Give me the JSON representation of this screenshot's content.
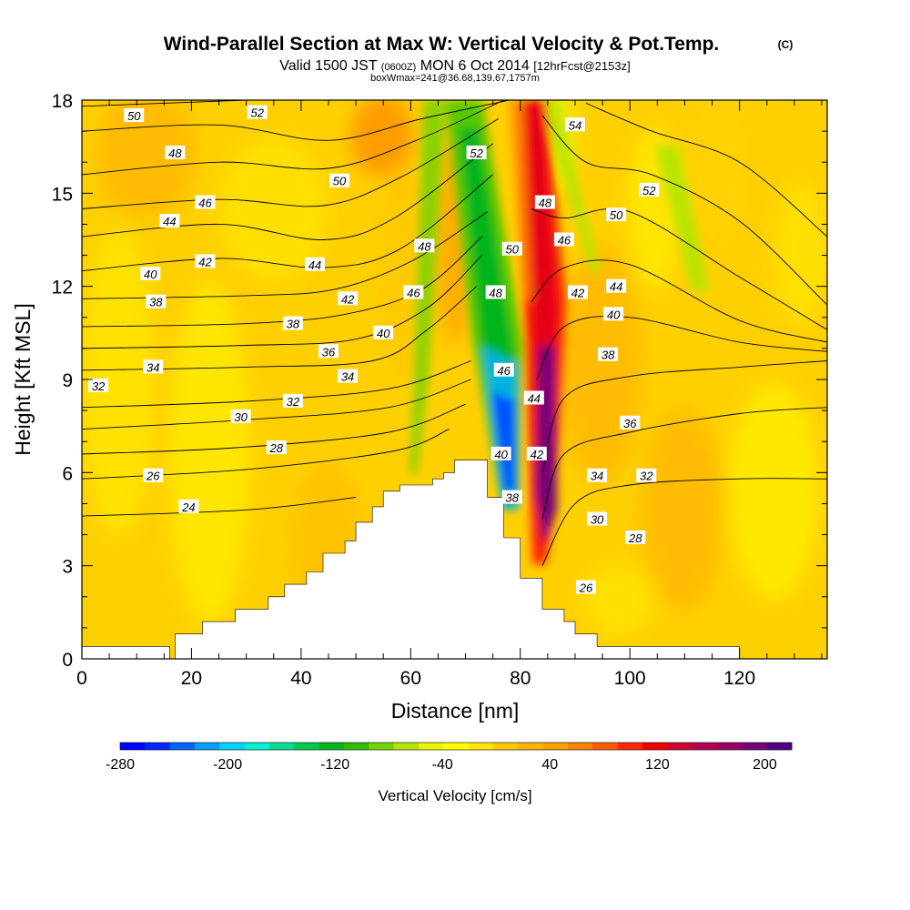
{
  "title": {
    "main": "Wind-Parallel Section at Max W: Vertical Velocity & Pot.Temp.",
    "copyright": "(C)",
    "valid_prefix": "Valid 1500 JST",
    "valid_utc": "(0600Z)",
    "valid_date": "MON 6 Oct 2014",
    "forecast": "[12hrFcst@2153z]",
    "box_info": "boxWmax=241@36.68,139.67,1757m"
  },
  "chart_data": {
    "type": "heatmap",
    "xlabel": "Distance [nm]",
    "ylabel": "Height [Kft MSL]",
    "xlim": [
      0,
      136
    ],
    "ylim": [
      0,
      18
    ],
    "x_ticks": [
      0,
      20,
      40,
      60,
      80,
      100,
      120
    ],
    "y_ticks": [
      0,
      3,
      6,
      9,
      12,
      15,
      18
    ],
    "colorbar": {
      "title": "Vertical Velocity [cm/s]",
      "range": [
        -280,
        220
      ],
      "tick_labels": [
        "-280",
        "-200",
        "-120",
        "-40",
        "40",
        "120",
        "200"
      ],
      "tick_values": [
        -280,
        -200,
        -120,
        -40,
        40,
        120,
        200
      ],
      "colors": [
        "#0000ff",
        "#0028ff",
        "#0064ff",
        "#00a0ff",
        "#00d2ff",
        "#00f0d2",
        "#00dc96",
        "#00c850",
        "#00b41e",
        "#32be00",
        "#78d200",
        "#b4e600",
        "#e6f500",
        "#ffff00",
        "#ffe600",
        "#ffc800",
        "#ffb400",
        "#ffa000",
        "#ff8200",
        "#ff5a00",
        "#ff2800",
        "#f00000",
        "#d20032",
        "#b40050",
        "#960064",
        "#780078",
        "#500082"
      ]
    },
    "terrain_kft": [
      [
        0,
        0.4
      ],
      [
        16,
        0.4
      ],
      [
        16,
        0
      ],
      [
        17,
        0
      ],
      [
        17,
        0.8
      ],
      [
        22,
        0.8
      ],
      [
        22,
        1.2
      ],
      [
        28,
        1.2
      ],
      [
        28,
        1.6
      ],
      [
        34,
        1.6
      ],
      [
        34,
        2.0
      ],
      [
        37,
        2.0
      ],
      [
        37,
        2.4
      ],
      [
        41,
        2.4
      ],
      [
        41,
        2.8
      ],
      [
        44,
        2.8
      ],
      [
        44,
        3.4
      ],
      [
        48,
        3.4
      ],
      [
        48,
        3.8
      ],
      [
        50,
        3.8
      ],
      [
        50,
        4.4
      ],
      [
        53,
        4.4
      ],
      [
        53,
        4.9
      ],
      [
        55,
        4.9
      ],
      [
        55,
        5.4
      ],
      [
        58,
        5.4
      ],
      [
        58,
        5.6
      ],
      [
        64,
        5.6
      ],
      [
        64,
        5.8
      ],
      [
        66,
        5.8
      ],
      [
        66,
        6.0
      ],
      [
        68,
        6.0
      ],
      [
        68,
        6.4
      ],
      [
        74,
        6.4
      ],
      [
        74,
        5.2
      ],
      [
        77,
        5.2
      ],
      [
        77,
        3.9
      ],
      [
        80,
        3.9
      ],
      [
        80,
        2.6
      ],
      [
        84,
        2.6
      ],
      [
        84,
        1.6
      ],
      [
        88,
        1.6
      ],
      [
        88,
        1.2
      ],
      [
        90,
        1.2
      ],
      [
        90,
        0.8
      ],
      [
        94,
        0.8
      ],
      [
        94,
        0.4
      ],
      [
        120,
        0.4
      ],
      [
        120,
        0
      ],
      [
        136,
        0
      ]
    ],
    "velocity_features_cm_s": [
      {
        "x": 67,
        "y": 10.5,
        "w": -160
      },
      {
        "x": 76,
        "y": 6.5,
        "w": -280
      },
      {
        "x": 82,
        "y": 7.5,
        "w": 210
      },
      {
        "x": 81,
        "y": 14,
        "w": 140
      },
      {
        "x": 58,
        "y": 9,
        "w": -60
      },
      {
        "x": 108,
        "y": 14,
        "w": -40
      },
      {
        "x": 52,
        "y": 16.5,
        "w": 80
      },
      {
        "x": 58,
        "y": 12.5,
        "w": 60
      }
    ],
    "theta_contours": [
      {
        "label": "24",
        "points": [
          [
            0,
            4.6
          ],
          [
            30,
            4.8
          ],
          [
            50,
            5.2
          ]
        ]
      },
      {
        "label": "26",
        "points": [
          [
            0,
            5.8
          ],
          [
            30,
            6.1
          ],
          [
            57,
            6.7
          ],
          [
            67,
            7.4
          ]
        ]
      },
      {
        "label": "28",
        "points": [
          [
            0,
            6.6
          ],
          [
            28,
            6.8
          ],
          [
            56,
            7.3
          ],
          [
            70,
            8.2
          ]
        ]
      },
      {
        "label": "30",
        "points": [
          [
            0,
            7.4
          ],
          [
            30,
            7.7
          ],
          [
            56,
            8.1
          ],
          [
            71,
            9.0
          ]
        ]
      },
      {
        "label": "32",
        "points": [
          [
            0,
            8.1
          ],
          [
            30,
            8.3
          ],
          [
            56,
            8.7
          ],
          [
            71,
            9.6
          ]
        ]
      },
      {
        "label": "34",
        "points": [
          [
            0,
            9.3
          ],
          [
            30,
            9.4
          ],
          [
            53,
            9.6
          ],
          [
            63,
            10.6
          ],
          [
            72,
            12.0
          ]
        ]
      },
      {
        "label": "36",
        "points": [
          [
            0,
            10.0
          ],
          [
            30,
            10.1
          ],
          [
            50,
            10.3
          ],
          [
            63,
            11.3
          ],
          [
            73,
            13.0
          ]
        ]
      },
      {
        "label": "38",
        "points": [
          [
            0,
            10.7
          ],
          [
            30,
            10.8
          ],
          [
            48,
            11.1
          ],
          [
            62,
            11.9
          ],
          [
            73,
            13.6
          ]
        ]
      },
      {
        "label": "40",
        "points": [
          [
            0,
            11.6
          ],
          [
            30,
            11.7
          ],
          [
            46,
            11.9
          ],
          [
            60,
            12.8
          ],
          [
            74,
            14.4
          ]
        ]
      },
      {
        "label": "42",
        "points": [
          [
            0,
            12.5
          ],
          [
            25,
            12.9
          ],
          [
            44,
            12.6
          ],
          [
            58,
            13.2
          ],
          [
            75,
            15.6
          ]
        ]
      },
      {
        "label": "44",
        "points": [
          [
            0,
            13.6
          ],
          [
            25,
            14.0
          ],
          [
            44,
            13.5
          ],
          [
            57,
            14.2
          ],
          [
            75,
            16.6
          ]
        ]
      },
      {
        "label": "46",
        "points": [
          [
            0,
            14.5
          ],
          [
            25,
            14.8
          ],
          [
            44,
            14.6
          ],
          [
            58,
            15.5
          ],
          [
            76,
            17.4
          ]
        ]
      },
      {
        "label": "48",
        "points": [
          [
            0,
            15.6
          ],
          [
            25,
            16.0
          ],
          [
            45,
            15.8
          ],
          [
            61,
            16.7
          ],
          [
            77,
            18.0
          ]
        ]
      },
      {
        "label": "50",
        "points": [
          [
            0,
            17.0
          ],
          [
            25,
            17.2
          ],
          [
            45,
            16.7
          ],
          [
            62,
            17.4
          ],
          [
            78,
            18.0
          ]
        ]
      },
      {
        "label": "52",
        "points": [
          [
            0,
            17.8
          ],
          [
            30,
            18.0
          ]
        ]
      },
      {
        "label": "",
        "points": [
          [
            84,
            3.0
          ],
          [
            90,
            5.0
          ],
          [
            100,
            5.6
          ],
          [
            120,
            5.8
          ],
          [
            136,
            5.8
          ]
        ]
      },
      {
        "label": "",
        "points": [
          [
            84,
            4.5
          ],
          [
            88,
            6.6
          ],
          [
            100,
            7.3
          ],
          [
            120,
            7.9
          ],
          [
            136,
            8.1
          ]
        ]
      },
      {
        "label": "",
        "points": [
          [
            84,
            6.0
          ],
          [
            88,
            8.4
          ],
          [
            100,
            9.1
          ],
          [
            120,
            9.4
          ],
          [
            136,
            9.6
          ]
        ]
      },
      {
        "label": "",
        "points": [
          [
            83,
            9.0
          ],
          [
            88,
            10.7
          ],
          [
            100,
            11.0
          ],
          [
            120,
            10.2
          ],
          [
            136,
            9.9
          ]
        ]
      },
      {
        "label": "",
        "points": [
          [
            82,
            11.5
          ],
          [
            88,
            12.6
          ],
          [
            100,
            12.7
          ],
          [
            120,
            10.9
          ],
          [
            136,
            10.2
          ]
        ]
      },
      {
        "label": "",
        "points": [
          [
            82,
            14.5
          ],
          [
            88,
            14.2
          ],
          [
            100,
            14.4
          ],
          [
            120,
            12.3
          ],
          [
            136,
            10.6
          ]
        ]
      },
      {
        "label": "",
        "points": [
          [
            84,
            17.5
          ],
          [
            92,
            16.0
          ],
          [
            104,
            15.6
          ],
          [
            120,
            14.1
          ],
          [
            136,
            11.4
          ]
        ]
      },
      {
        "label": "",
        "points": [
          [
            92,
            17.9
          ],
          [
            104,
            17.0
          ],
          [
            120,
            16.0
          ],
          [
            136,
            13.6
          ]
        ]
      }
    ],
    "theta_labels": [
      {
        "text": "50",
        "x": 9.5,
        "y": 17.5
      },
      {
        "text": "52",
        "x": 32,
        "y": 17.6
      },
      {
        "text": "48",
        "x": 17,
        "y": 16.3
      },
      {
        "text": "50",
        "x": 47,
        "y": 15.4
      },
      {
        "text": "52",
        "x": 72,
        "y": 16.3
      },
      {
        "text": "54",
        "x": 90,
        "y": 17.2
      },
      {
        "text": "46",
        "x": 22.5,
        "y": 14.7
      },
      {
        "text": "44",
        "x": 16,
        "y": 14.1
      },
      {
        "text": "48",
        "x": 84.5,
        "y": 14.7
      },
      {
        "text": "50",
        "x": 97.5,
        "y": 14.3
      },
      {
        "text": "52",
        "x": 103.5,
        "y": 15.1
      },
      {
        "text": "46",
        "x": 88,
        "y": 13.5
      },
      {
        "text": "48",
        "x": 62.5,
        "y": 13.3
      },
      {
        "text": "50",
        "x": 78.5,
        "y": 13.2
      },
      {
        "text": "42",
        "x": 22.5,
        "y": 12.8
      },
      {
        "text": "44",
        "x": 42.5,
        "y": 12.7
      },
      {
        "text": "40",
        "x": 12.5,
        "y": 12.4
      },
      {
        "text": "38",
        "x": 13.5,
        "y": 11.5
      },
      {
        "text": "42",
        "x": 48.5,
        "y": 11.6
      },
      {
        "text": "46",
        "x": 60.5,
        "y": 11.8
      },
      {
        "text": "48",
        "x": 75.5,
        "y": 11.8
      },
      {
        "text": "42",
        "x": 90.5,
        "y": 11.8
      },
      {
        "text": "44",
        "x": 97.5,
        "y": 12.0
      },
      {
        "text": "40",
        "x": 97,
        "y": 11.1
      },
      {
        "text": "38",
        "x": 38.5,
        "y": 10.8
      },
      {
        "text": "40",
        "x": 55,
        "y": 10.5
      },
      {
        "text": "36",
        "x": 45,
        "y": 9.9
      },
      {
        "text": "38",
        "x": 96,
        "y": 9.8
      },
      {
        "text": "34",
        "x": 13,
        "y": 9.4
      },
      {
        "text": "34",
        "x": 48.5,
        "y": 9.1
      },
      {
        "text": "46",
        "x": 77,
        "y": 9.3
      },
      {
        "text": "32",
        "x": 3,
        "y": 8.8
      },
      {
        "text": "44",
        "x": 82.5,
        "y": 8.4
      },
      {
        "text": "32",
        "x": 38.5,
        "y": 8.3
      },
      {
        "text": "30",
        "x": 29,
        "y": 7.8
      },
      {
        "text": "36",
        "x": 100,
        "y": 7.6
      },
      {
        "text": "28",
        "x": 35.5,
        "y": 6.8
      },
      {
        "text": "40",
        "x": 76.5,
        "y": 6.6
      },
      {
        "text": "42",
        "x": 83,
        "y": 6.6
      },
      {
        "text": "26",
        "x": 13,
        "y": 5.9
      },
      {
        "text": "34",
        "x": 94,
        "y": 5.9
      },
      {
        "text": "32",
        "x": 103,
        "y": 5.9
      },
      {
        "text": "38",
        "x": 78.5,
        "y": 5.2
      },
      {
        "text": "24",
        "x": 19.5,
        "y": 4.9
      },
      {
        "text": "30",
        "x": 94,
        "y": 4.5
      },
      {
        "text": "28",
        "x": 101,
        "y": 3.9
      },
      {
        "text": "26",
        "x": 92,
        "y": 2.3
      }
    ]
  }
}
